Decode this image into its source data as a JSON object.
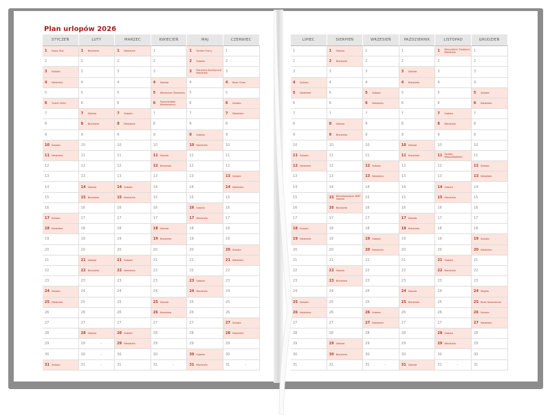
{
  "title": "Plan urlopów 2026",
  "empty_day_mark": "–",
  "colors": {
    "accent": "#a3201d",
    "highlight": "#fbe5de",
    "cover": "#8c8c8c"
  },
  "left_months": [
    {
      "name": "STYCZEŃ",
      "length": 31,
      "notes": {
        "1": "Nowy Rok",
        "3": "Sobota",
        "4": "Niedziela",
        "6": "Trzech Króli",
        "10": "Sobota",
        "11": "Niedziela",
        "17": "Sobota",
        "18": "Niedziela",
        "24": "Sobota",
        "25": "Niedziela",
        "31": "Sobota"
      }
    },
    {
      "name": "LUTY",
      "length": 28,
      "notes": {
        "1": "Niedziela",
        "7": "Sobota",
        "8": "Niedziela",
        "14": "Sobota",
        "15": "Niedziela",
        "21": "Sobota",
        "22": "Niedziela",
        "28": "Sobota"
      }
    },
    {
      "name": "MARZEC",
      "length": 31,
      "notes": {
        "1": "Niedziela",
        "7": "Sobota",
        "8": "Niedziela",
        "14": "Sobota",
        "15": "Niedziela",
        "21": "Sobota",
        "22": "Niedziela",
        "28": "Sobota",
        "29": "Niedziela"
      }
    },
    {
      "name": "KWIECIEŃ",
      "length": 30,
      "notes": {
        "4": "Sobota",
        "5": "Wielkanoc Niedziela",
        "6": "Poniedziałek Wielkanocny",
        "11": "Sobota",
        "12": "Niedziela",
        "18": "Sobota",
        "19": "Niedziela",
        "25": "Sobota",
        "26": "Niedziela"
      }
    },
    {
      "name": "MAJ",
      "length": 31,
      "notes": {
        "1": "Święto Pracy",
        "2": "Sobota",
        "3": "Rocznica Konstytucji Niedziela",
        "9": "Sobota",
        "10": "Niedziela",
        "16": "Sobota",
        "17": "Niedziela",
        "23": "Sobota",
        "24": "Niedziela",
        "30": "Sobota",
        "31": "Niedziela"
      }
    },
    {
      "name": "CZERWIEC",
      "length": 30,
      "notes": {
        "4": "Boże Ciało",
        "6": "Sobota",
        "7": "Niedziela",
        "13": "Sobota",
        "14": "Niedziela",
        "20": "Sobota",
        "21": "Niedziela",
        "27": "Sobota",
        "28": "Niedziela"
      }
    }
  ],
  "right_months": [
    {
      "name": "LIPIEC",
      "length": 31,
      "notes": {
        "4": "Sobota",
        "5": "Niedziela",
        "11": "Sobota",
        "12": "Niedziela",
        "18": "Sobota",
        "19": "Niedziela",
        "25": "Sobota",
        "26": "Niedziela"
      }
    },
    {
      "name": "SIERPIEŃ",
      "length": 31,
      "notes": {
        "1": "Sobota",
        "2": "Niedziela",
        "8": "Sobota",
        "9": "Niedziela",
        "15": "Wniebowzięcie NMP Sobota",
        "16": "Niedziela",
        "22": "Sobota",
        "23": "Niedziela",
        "29": "Sobota",
        "30": "Niedziela"
      }
    },
    {
      "name": "WRZESIEŃ",
      "length": 30,
      "notes": {
        "5": "Sobota",
        "6": "Niedziela",
        "12": "Sobota",
        "13": "Niedziela",
        "19": "Sobota",
        "20": "Niedziela",
        "26": "Sobota",
        "27": "Niedziela"
      }
    },
    {
      "name": "PAŹDZIERNIK",
      "length": 31,
      "notes": {
        "3": "Sobota",
        "4": "Niedziela",
        "10": "Sobota",
        "11": "Niedziela",
        "17": "Sobota",
        "18": "Niedziela",
        "24": "Sobota",
        "25": "Niedziela",
        "31": "Sobota"
      }
    },
    {
      "name": "LISTOPAD",
      "length": 30,
      "notes": {
        "1": "Wszystkich Świętych Niedziela",
        "7": "Sobota",
        "8": "Niedziela",
        "11": "Święto Niepodległości",
        "14": "Sobota",
        "15": "Niedziela",
        "21": "Sobota",
        "22": "Niedziela",
        "28": "Sobota",
        "29": "Niedziela"
      }
    },
    {
      "name": "GRUDZIEŃ",
      "length": 31,
      "notes": {
        "5": "Sobota",
        "6": "Niedziela",
        "12": "Sobota",
        "13": "Niedziela",
        "19": "Sobota",
        "20": "Niedziela",
        "24": "Wigilia",
        "25": "Boże Narodzenie",
        "26": "Sobota",
        "27": "Niedziela"
      }
    }
  ]
}
